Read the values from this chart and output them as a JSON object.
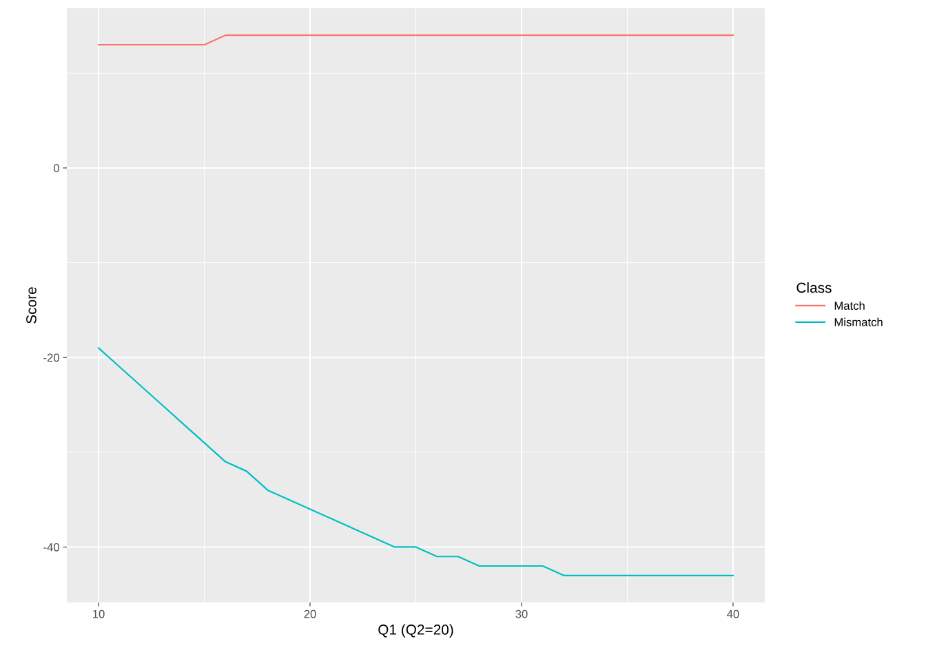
{
  "chart_data": {
    "type": "line",
    "xlabel": "Q1 (Q2=20)",
    "ylabel": "Score",
    "legend_title": "Class",
    "legend": "right",
    "x": [
      10,
      11,
      12,
      13,
      14,
      15,
      16,
      17,
      18,
      19,
      20,
      21,
      22,
      23,
      24,
      25,
      26,
      27,
      28,
      29,
      30,
      31,
      32,
      33,
      34,
      35,
      36,
      37,
      38,
      39,
      40
    ],
    "series": [
      {
        "name": "Match",
        "color": "#f8766d",
        "values": [
          13,
          13,
          13,
          13,
          13,
          13,
          14,
          14,
          14,
          14,
          14,
          14,
          14,
          14,
          14,
          14,
          14,
          14,
          14,
          14,
          14,
          14,
          14,
          14,
          14,
          14,
          14,
          14,
          14,
          14,
          14
        ]
      },
      {
        "name": "Mismatch",
        "color": "#00bfc4",
        "values": [
          -19,
          -21,
          -23,
          -25,
          -27,
          -29,
          -31,
          -32,
          -34,
          -35,
          -36,
          -37,
          -38,
          -39,
          -40,
          -40,
          -41,
          -41,
          -42,
          -42,
          -42,
          -42,
          -43,
          -43,
          -43,
          -43,
          -43,
          -43,
          -43,
          -43,
          -43
        ]
      }
    ],
    "xlim": [
      8.5,
      41.5
    ],
    "ylim": [
      -45.85,
      16.85
    ],
    "xticks": [
      10,
      20,
      30,
      40
    ],
    "yticks": [
      -40,
      -20,
      0
    ],
    "grid": true
  }
}
